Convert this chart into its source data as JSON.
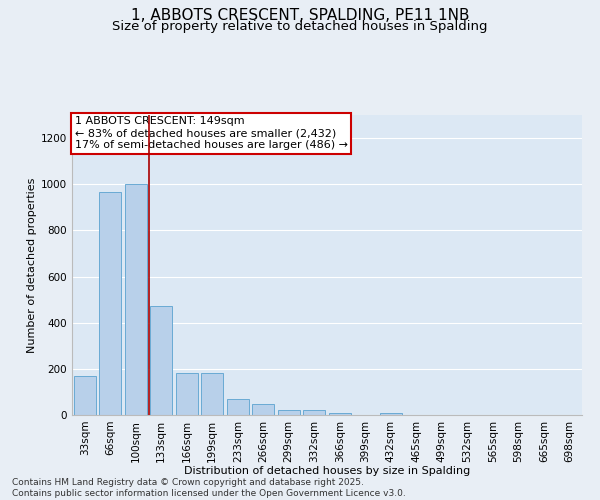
{
  "title_line1": "1, ABBOTS CRESCENT, SPALDING, PE11 1NB",
  "title_line2": "Size of property relative to detached houses in Spalding",
  "xlabel": "Distribution of detached houses by size in Spalding",
  "ylabel": "Number of detached properties",
  "categories": [
    "33sqm",
    "66sqm",
    "100sqm",
    "133sqm",
    "166sqm",
    "199sqm",
    "233sqm",
    "266sqm",
    "299sqm",
    "332sqm",
    "366sqm",
    "399sqm",
    "432sqm",
    "465sqm",
    "499sqm",
    "532sqm",
    "565sqm",
    "598sqm",
    "665sqm",
    "698sqm"
  ],
  "values": [
    168,
    968,
    1000,
    472,
    182,
    182,
    68,
    48,
    20,
    20,
    8,
    0,
    8,
    0,
    0,
    0,
    0,
    0,
    0,
    0
  ],
  "bar_color": "#b8d0ea",
  "bar_edge_color": "#6aaad4",
  "bg_color": "#e8eef5",
  "plot_bg_color": "#dce8f4",
  "grid_color": "#ffffff",
  "vline_x": 2.5,
  "vline_color": "#aa0000",
  "annotation_text": "1 ABBOTS CRESCENT: 149sqm\n← 83% of detached houses are smaller (2,432)\n17% of semi-detached houses are larger (486) →",
  "annotation_box_color": "#ffffff",
  "annotation_box_edge_color": "#cc0000",
  "footnote": "Contains HM Land Registry data © Crown copyright and database right 2025.\nContains public sector information licensed under the Open Government Licence v3.0.",
  "ylim": [
    0,
    1300
  ],
  "yticks": [
    0,
    200,
    400,
    600,
    800,
    1000,
    1200
  ],
  "title_fontsize": 11,
  "subtitle_fontsize": 9.5,
  "axis_label_fontsize": 8,
  "tick_fontsize": 7.5,
  "annotation_fontsize": 8,
  "footnote_fontsize": 6.5
}
